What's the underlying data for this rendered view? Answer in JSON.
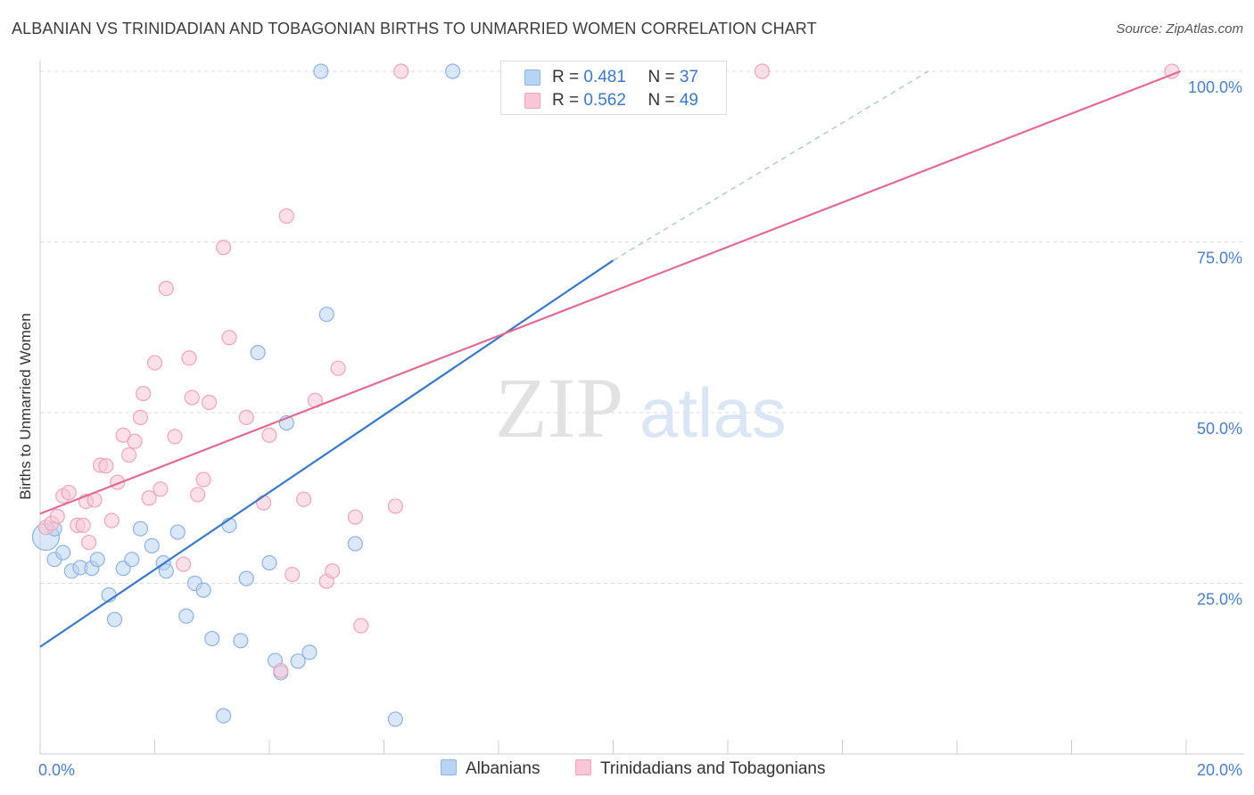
{
  "title": "ALBANIAN VS TRINIDADIAN AND TOBAGONIAN BIRTHS TO UNMARRIED WOMEN CORRELATION CHART",
  "source": "Source: ZipAtlas.com",
  "watermark": {
    "zip": "ZIP",
    "atlas": "atlas"
  },
  "legend": {
    "rows": [
      {
        "r_label": "R = ",
        "r_value": "0.481",
        "n_label": "N = ",
        "n_value": "37"
      },
      {
        "r_label": "R = ",
        "r_value": "0.562",
        "n_label": "N = ",
        "n_value": "49"
      }
    ]
  },
  "bottom_legend": [
    "Albanians",
    "Trinidadians and Tobagonians"
  ],
  "colors": {
    "albanians_fill": "#b9d3f2",
    "albanians_stroke": "#8db3e2",
    "albanians_line": "#3a78c8",
    "trini_fill": "#f8c6d6",
    "trini_stroke": "#f0a3bc",
    "trini_line": "#e26b95",
    "grid": "#d9d9d9",
    "tick_text": "#4a7ec9"
  },
  "chart_data": {
    "type": "scatter",
    "title": "ALBANIAN VS TRINIDADIAN AND TOBAGONIAN BIRTHS TO UNMARRIED WOMEN CORRELATION CHART",
    "xlabel": "",
    "ylabel": "Births to Unmarried Women",
    "xlim": [
      0,
      20
    ],
    "ylim": [
      0,
      100
    ],
    "x_ticks": [
      "0.0%",
      "20.0%"
    ],
    "y_ticks": [
      {
        "value": 25,
        "label": "25.0%"
      },
      {
        "value": 50,
        "label": "50.0%"
      },
      {
        "value": 75,
        "label": "75.0%"
      },
      {
        "value": 100,
        "label": "100.0%"
      }
    ],
    "grid": true,
    "legend_position": "top-center",
    "series": [
      {
        "name": "Albanians",
        "points": [
          [
            0.1,
            31.8
          ],
          [
            0.25,
            33
          ],
          [
            0.25,
            28.5
          ],
          [
            0.4,
            29.5
          ],
          [
            0.55,
            26.8
          ],
          [
            0.7,
            27.3
          ],
          [
            0.9,
            27.2
          ],
          [
            1.0,
            28.5
          ],
          [
            1.2,
            23.3
          ],
          [
            1.3,
            19.7
          ],
          [
            1.45,
            27.2
          ],
          [
            1.6,
            28.5
          ],
          [
            1.75,
            33
          ],
          [
            1.95,
            30.5
          ],
          [
            2.15,
            28
          ],
          [
            2.2,
            26.8
          ],
          [
            2.4,
            32.5
          ],
          [
            2.55,
            20.2
          ],
          [
            2.7,
            25
          ],
          [
            2.85,
            24
          ],
          [
            3.0,
            16.9
          ],
          [
            3.2,
            5.6
          ],
          [
            3.3,
            33.5
          ],
          [
            3.5,
            16.6
          ],
          [
            3.6,
            25.7
          ],
          [
            3.8,
            58.8
          ],
          [
            4.0,
            28
          ],
          [
            4.1,
            13.7
          ],
          [
            4.2,
            11.9
          ],
          [
            4.3,
            48.5
          ],
          [
            4.5,
            13.6
          ],
          [
            4.7,
            14.9
          ],
          [
            4.9,
            100
          ],
          [
            5.0,
            64.4
          ],
          [
            5.5,
            30.8
          ],
          [
            6.2,
            5.1
          ],
          [
            7.2,
            100
          ]
        ],
        "trend": {
          "x": [
            0,
            10
          ],
          "y": [
            15.7,
            72.3
          ]
        },
        "trend_extension": {
          "x": [
            10,
            15.5
          ],
          "y": [
            72.3,
            100
          ]
        }
      },
      {
        "name": "Trinidadians and Tobagonians",
        "points": [
          [
            0.1,
            33.2
          ],
          [
            0.2,
            33.8
          ],
          [
            0.3,
            34.8
          ],
          [
            0.4,
            37.8
          ],
          [
            0.5,
            38.3
          ],
          [
            0.65,
            33.5
          ],
          [
            0.75,
            33.5
          ],
          [
            0.8,
            37
          ],
          [
            0.85,
            31
          ],
          [
            0.95,
            37.2
          ],
          [
            1.05,
            42.3
          ],
          [
            1.15,
            42.2
          ],
          [
            1.25,
            34.2
          ],
          [
            1.35,
            39.8
          ],
          [
            1.45,
            46.7
          ],
          [
            1.55,
            43.8
          ],
          [
            1.65,
            45.8
          ],
          [
            1.75,
            49.3
          ],
          [
            1.8,
            52.8
          ],
          [
            1.9,
            37.5
          ],
          [
            2.0,
            57.3
          ],
          [
            2.1,
            38.8
          ],
          [
            2.2,
            68.2
          ],
          [
            2.35,
            46.5
          ],
          [
            2.5,
            27.8
          ],
          [
            2.6,
            58
          ],
          [
            2.65,
            52.2
          ],
          [
            2.75,
            38
          ],
          [
            2.85,
            40.2
          ],
          [
            2.95,
            51.5
          ],
          [
            3.2,
            74.2
          ],
          [
            3.3,
            61
          ],
          [
            3.6,
            49.3
          ],
          [
            3.9,
            36.8
          ],
          [
            4.0,
            46.7
          ],
          [
            4.2,
            12.2
          ],
          [
            4.3,
            78.8
          ],
          [
            4.4,
            26.3
          ],
          [
            4.6,
            37.3
          ],
          [
            4.8,
            51.8
          ],
          [
            5.0,
            25.3
          ],
          [
            5.1,
            26.8
          ],
          [
            5.2,
            56.5
          ],
          [
            5.5,
            34.7
          ],
          [
            5.6,
            18.8
          ],
          [
            6.2,
            36.3
          ],
          [
            6.3,
            100
          ],
          [
            12.6,
            100
          ],
          [
            19.75,
            100
          ]
        ],
        "trend": {
          "x": [
            0,
            19.9
          ],
          "y": [
            35.2,
            100
          ]
        }
      }
    ]
  }
}
